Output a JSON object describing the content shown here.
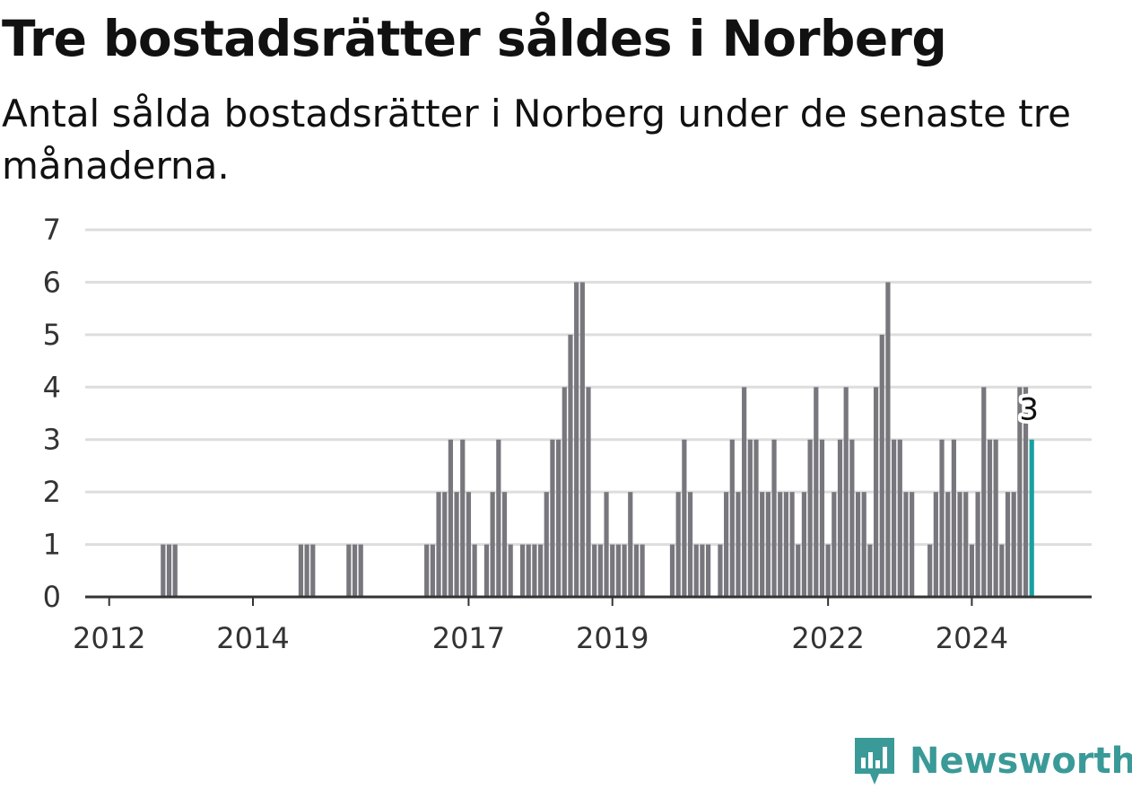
{
  "title": "Tre bostadsrätter såldes i Norberg",
  "subtitle": "Antal sålda bostadsrätter i Norberg under de senaste tre månaderna.",
  "colors": {
    "bar": "#77777d",
    "highlight": "#18a0a0",
    "grid": "#dddddd",
    "axis": "#333333",
    "brand": "#3a9a98"
  },
  "brand": {
    "name": "Newsworthy",
    "icon": "newsworthy-logo-icon"
  },
  "chart_data": {
    "type": "bar",
    "title": "Tre bostadsrätter såldes i Norberg",
    "subtitle": "Antal sålda bostadsrätter i Norberg under de senaste tre månaderna.",
    "xlabel": "",
    "ylabel": "",
    "ylim": [
      0,
      7
    ],
    "y_ticks": [
      0,
      1,
      2,
      3,
      4,
      5,
      6,
      7
    ],
    "x_range": [
      "2011-09",
      "2025-09"
    ],
    "x_tick_labels": [
      {
        "label": "2012",
        "month": "2012-01"
      },
      {
        "label": "2014",
        "month": "2014-01"
      },
      {
        "label": "2017",
        "month": "2017-01"
      },
      {
        "label": "2019",
        "month": "2019-01"
      },
      {
        "label": "2022",
        "month": "2022-01"
      },
      {
        "label": "2024",
        "month": "2024-01"
      }
    ],
    "grid": true,
    "legend": "none",
    "highlight_label": "3",
    "series": [
      {
        "values": [
          {
            "x": "2012-10",
            "y": 1
          },
          {
            "x": "2012-11",
            "y": 1
          },
          {
            "x": "2012-12",
            "y": 1
          },
          {
            "x": "2014-09",
            "y": 1
          },
          {
            "x": "2014-10",
            "y": 1
          },
          {
            "x": "2014-11",
            "y": 1
          },
          {
            "x": "2015-05",
            "y": 1
          },
          {
            "x": "2015-06",
            "y": 1
          },
          {
            "x": "2015-07",
            "y": 1
          },
          {
            "x": "2016-06",
            "y": 1
          },
          {
            "x": "2016-07",
            "y": 1
          },
          {
            "x": "2016-08",
            "y": 2
          },
          {
            "x": "2016-09",
            "y": 2
          },
          {
            "x": "2016-10",
            "y": 3
          },
          {
            "x": "2016-11",
            "y": 2
          },
          {
            "x": "2016-12",
            "y": 3
          },
          {
            "x": "2017-01",
            "y": 2
          },
          {
            "x": "2017-02",
            "y": 1
          },
          {
            "x": "2017-04",
            "y": 1
          },
          {
            "x": "2017-05",
            "y": 2
          },
          {
            "x": "2017-06",
            "y": 3
          },
          {
            "x": "2017-07",
            "y": 2
          },
          {
            "x": "2017-08",
            "y": 1
          },
          {
            "x": "2017-10",
            "y": 1
          },
          {
            "x": "2017-11",
            "y": 1
          },
          {
            "x": "2017-12",
            "y": 1
          },
          {
            "x": "2018-01",
            "y": 1
          },
          {
            "x": "2018-02",
            "y": 2
          },
          {
            "x": "2018-03",
            "y": 3
          },
          {
            "x": "2018-04",
            "y": 3
          },
          {
            "x": "2018-05",
            "y": 4
          },
          {
            "x": "2018-06",
            "y": 5
          },
          {
            "x": "2018-07",
            "y": 6
          },
          {
            "x": "2018-08",
            "y": 6
          },
          {
            "x": "2018-09",
            "y": 4
          },
          {
            "x": "2018-10",
            "y": 1
          },
          {
            "x": "2018-11",
            "y": 1
          },
          {
            "x": "2018-12",
            "y": 2
          },
          {
            "x": "2019-01",
            "y": 1
          },
          {
            "x": "2019-02",
            "y": 1
          },
          {
            "x": "2019-03",
            "y": 1
          },
          {
            "x": "2019-04",
            "y": 2
          },
          {
            "x": "2019-05",
            "y": 1
          },
          {
            "x": "2019-06",
            "y": 1
          },
          {
            "x": "2019-11",
            "y": 1
          },
          {
            "x": "2019-12",
            "y": 2
          },
          {
            "x": "2020-01",
            "y": 3
          },
          {
            "x": "2020-02",
            "y": 2
          },
          {
            "x": "2020-03",
            "y": 1
          },
          {
            "x": "2020-04",
            "y": 1
          },
          {
            "x": "2020-05",
            "y": 1
          },
          {
            "x": "2020-07",
            "y": 1
          },
          {
            "x": "2020-08",
            "y": 2
          },
          {
            "x": "2020-09",
            "y": 3
          },
          {
            "x": "2020-10",
            "y": 2
          },
          {
            "x": "2020-11",
            "y": 4
          },
          {
            "x": "2020-12",
            "y": 3
          },
          {
            "x": "2021-01",
            "y": 3
          },
          {
            "x": "2021-02",
            "y": 2
          },
          {
            "x": "2021-03",
            "y": 2
          },
          {
            "x": "2021-04",
            "y": 3
          },
          {
            "x": "2021-05",
            "y": 2
          },
          {
            "x": "2021-06",
            "y": 2
          },
          {
            "x": "2021-07",
            "y": 2
          },
          {
            "x": "2021-08",
            "y": 1
          },
          {
            "x": "2021-09",
            "y": 2
          },
          {
            "x": "2021-10",
            "y": 3
          },
          {
            "x": "2021-11",
            "y": 4
          },
          {
            "x": "2021-12",
            "y": 3
          },
          {
            "x": "2022-01",
            "y": 1
          },
          {
            "x": "2022-02",
            "y": 2
          },
          {
            "x": "2022-03",
            "y": 3
          },
          {
            "x": "2022-04",
            "y": 4
          },
          {
            "x": "2022-05",
            "y": 3
          },
          {
            "x": "2022-06",
            "y": 2
          },
          {
            "x": "2022-07",
            "y": 2
          },
          {
            "x": "2022-08",
            "y": 1
          },
          {
            "x": "2022-09",
            "y": 4
          },
          {
            "x": "2022-10",
            "y": 5
          },
          {
            "x": "2022-11",
            "y": 6
          },
          {
            "x": "2022-12",
            "y": 3
          },
          {
            "x": "2023-01",
            "y": 3
          },
          {
            "x": "2023-02",
            "y": 2
          },
          {
            "x": "2023-03",
            "y": 2
          },
          {
            "x": "2023-06",
            "y": 1
          },
          {
            "x": "2023-07",
            "y": 2
          },
          {
            "x": "2023-08",
            "y": 3
          },
          {
            "x": "2023-09",
            "y": 2
          },
          {
            "x": "2023-10",
            "y": 3
          },
          {
            "x": "2023-11",
            "y": 2
          },
          {
            "x": "2023-12",
            "y": 2
          },
          {
            "x": "2024-01",
            "y": 1
          },
          {
            "x": "2024-02",
            "y": 2
          },
          {
            "x": "2024-03",
            "y": 4
          },
          {
            "x": "2024-04",
            "y": 3
          },
          {
            "x": "2024-05",
            "y": 3
          },
          {
            "x": "2024-06",
            "y": 1
          },
          {
            "x": "2024-07",
            "y": 2
          },
          {
            "x": "2024-08",
            "y": 2
          },
          {
            "x": "2024-09",
            "y": 4
          },
          {
            "x": "2024-10",
            "y": 4
          },
          {
            "x": "2024-11",
            "y": 3,
            "highlight": true
          }
        ]
      }
    ]
  }
}
